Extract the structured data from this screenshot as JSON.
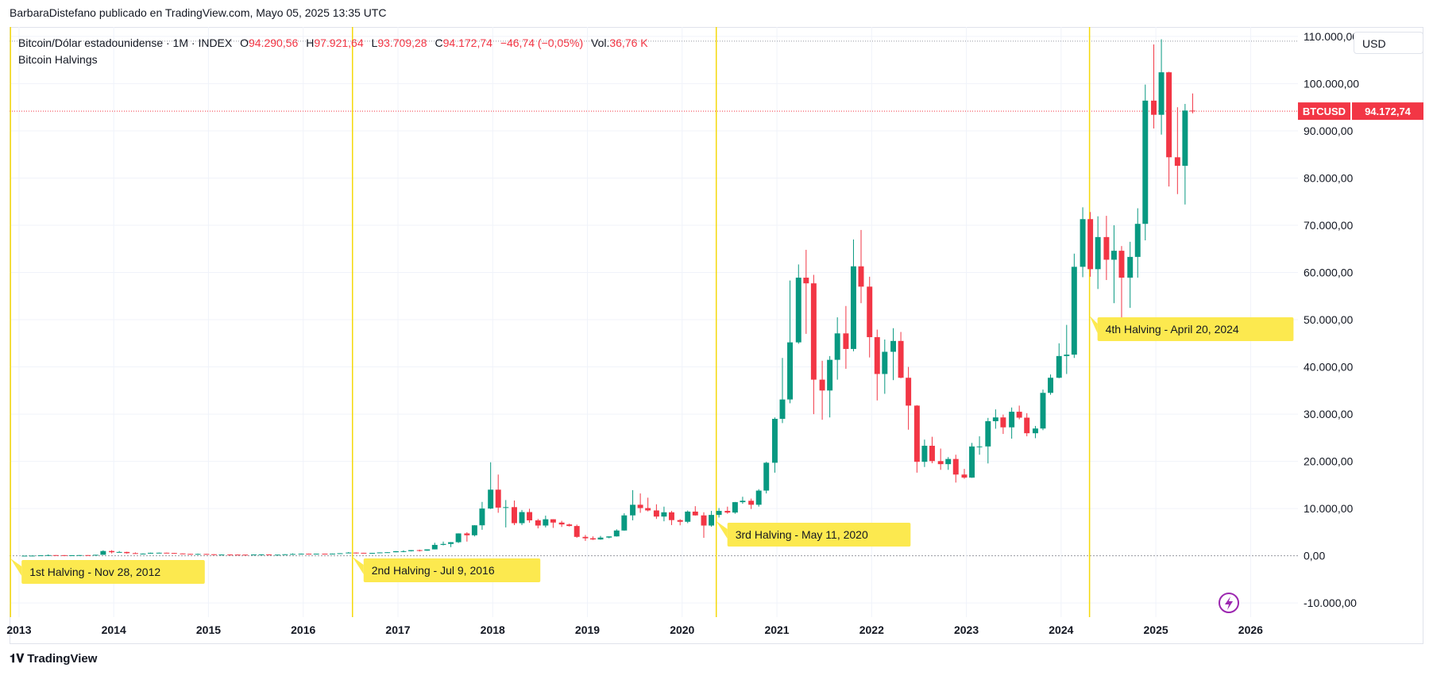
{
  "attribution": "BarbaraDistefano publicado en TradingView.com, Mayo 05, 2025 13:35 UTC",
  "legend": {
    "symbol": "Bitcoin/Dólar estadounidense · 1M · INDEX",
    "o_label": "O",
    "o": "94.290,56",
    "h_label": "H",
    "h": "97.921,64",
    "l_label": "L",
    "l": "93.709,28",
    "c_label": "C",
    "c": "94.172,74",
    "change": "−46,74 (−0,05%)",
    "vol_label": "Vol.",
    "vol": "36,76 K",
    "indicator": "Bitcoin Halvings"
  },
  "currency": "USD",
  "price_tag": {
    "ticker": "BTCUSD",
    "price": "94.172,74"
  },
  "footer": "TradingView",
  "colors": {
    "up": "#089981",
    "down": "#f23645",
    "halving_line": "#f5d90a",
    "label_bg": "#fce94f",
    "grid": "#f0f3fa"
  },
  "chart_data": {
    "type": "candlestick",
    "ylim": [
      -13000,
      112000
    ],
    "xlim": [
      2012.9,
      2026.5
    ],
    "y_ticks": [
      -10000,
      0,
      10000,
      20000,
      30000,
      40000,
      50000,
      60000,
      70000,
      80000,
      90000,
      100000,
      110000
    ],
    "y_tick_labels": [
      "-10.000,00",
      "0,00",
      "10.000,00",
      "20.000,00",
      "30.000,00",
      "40.000,00",
      "50.000,00",
      "60.000,00",
      "70.000,00",
      "80.000,00",
      "90.000,00",
      "100.000,00",
      "110.000,00"
    ],
    "x_ticks": [
      2013,
      2014,
      2015,
      2016,
      2017,
      2018,
      2019,
      2020,
      2021,
      2022,
      2023,
      2024,
      2025,
      2026
    ],
    "x_tick_labels": [
      "2013",
      "2014",
      "2015",
      "2016",
      "2017",
      "2018",
      "2019",
      "2020",
      "2021",
      "2022",
      "2023",
      "2024",
      "2025",
      "2026"
    ],
    "last_price": 94172.74,
    "ath_line": 109000,
    "halvings": [
      {
        "date": 2012.91,
        "label": "1st Halving - Nov 28, 2012"
      },
      {
        "date": 2016.52,
        "label": "2nd Halving - Jul 9, 2016"
      },
      {
        "date": 2020.36,
        "label": "3rd Halving - May 11, 2020"
      },
      {
        "date": 2024.3,
        "label": "4th Halving - April 20, 2024"
      }
    ],
    "candles": [
      [
        2013.0,
        13,
        20,
        12,
        20
      ],
      [
        2013.08,
        20,
        34,
        19,
        33
      ],
      [
        2013.17,
        33,
        94,
        32,
        93
      ],
      [
        2013.25,
        93,
        266,
        50,
        139
      ],
      [
        2013.33,
        139,
        140,
        80,
        129
      ],
      [
        2013.42,
        129,
        130,
        90,
        97
      ],
      [
        2013.5,
        97,
        110,
        65,
        106
      ],
      [
        2013.58,
        106,
        140,
        100,
        141
      ],
      [
        2013.67,
        141,
        150,
        120,
        133
      ],
      [
        2013.75,
        133,
        210,
        110,
        203
      ],
      [
        2013.83,
        203,
        1160,
        200,
        1000
      ],
      [
        2013.92,
        1000,
        1180,
        500,
        750
      ],
      [
        2014.0,
        750,
        1000,
        750,
        800
      ],
      [
        2014.08,
        800,
        850,
        450,
        550
      ],
      [
        2014.17,
        550,
        700,
        450,
        450
      ],
      [
        2014.25,
        450,
        500,
        350,
        450
      ],
      [
        2014.33,
        450,
        650,
        430,
        625
      ],
      [
        2014.42,
        625,
        680,
        550,
        640
      ],
      [
        2014.5,
        640,
        660,
        560,
        585
      ],
      [
        2014.58,
        585,
        600,
        450,
        480
      ],
      [
        2014.67,
        480,
        500,
        380,
        390
      ],
      [
        2014.75,
        390,
        410,
        280,
        340
      ],
      [
        2014.83,
        340,
        455,
        330,
        380
      ],
      [
        2014.92,
        380,
        400,
        300,
        320
      ],
      [
        2015.0,
        320,
        320,
        170,
        220
      ],
      [
        2015.08,
        220,
        270,
        220,
        255
      ],
      [
        2015.17,
        255,
        300,
        240,
        245
      ],
      [
        2015.25,
        245,
        260,
        215,
        235
      ],
      [
        2015.33,
        235,
        245,
        225,
        230
      ],
      [
        2015.42,
        230,
        265,
        220,
        263
      ],
      [
        2015.5,
        263,
        320,
        250,
        285
      ],
      [
        2015.58,
        285,
        285,
        200,
        230
      ],
      [
        2015.67,
        230,
        245,
        225,
        236
      ],
      [
        2015.75,
        236,
        330,
        235,
        315
      ],
      [
        2015.83,
        315,
        500,
        300,
        377
      ],
      [
        2015.92,
        377,
        470,
        350,
        430
      ],
      [
        2016.0,
        430,
        460,
        350,
        370
      ],
      [
        2016.08,
        370,
        440,
        360,
        436
      ],
      [
        2016.17,
        436,
        440,
        400,
        416
      ],
      [
        2016.25,
        416,
        465,
        405,
        448
      ],
      [
        2016.33,
        448,
        550,
        440,
        530
      ],
      [
        2016.42,
        530,
        780,
        530,
        670
      ],
      [
        2016.5,
        670,
        700,
        470,
        624
      ],
      [
        2016.58,
        624,
        625,
        540,
        575
      ],
      [
        2016.67,
        575,
        615,
        590,
        609
      ],
      [
        2016.75,
        609,
        715,
        600,
        700
      ],
      [
        2016.83,
        700,
        750,
        680,
        745
      ],
      [
        2016.92,
        745,
        975,
        740,
        965
      ],
      [
        2017.0,
        965,
        1150,
        750,
        970
      ],
      [
        2017.08,
        970,
        1200,
        920,
        1190
      ],
      [
        2017.17,
        1190,
        1290,
        900,
        1080
      ],
      [
        2017.25,
        1080,
        1350,
        1050,
        1350
      ],
      [
        2017.33,
        1350,
        2750,
        1350,
        2300
      ],
      [
        2017.42,
        2300,
        3000,
        2200,
        2500
      ],
      [
        2017.5,
        2500,
        2900,
        1830,
        2870
      ],
      [
        2017.58,
        2870,
        4750,
        2700,
        4730
      ],
      [
        2017.67,
        4730,
        4980,
        3000,
        4340
      ],
      [
        2017.75,
        4340,
        6470,
        4100,
        6450
      ],
      [
        2017.83,
        6450,
        11400,
        5500,
        10000
      ],
      [
        2017.92,
        10000,
        19800,
        9900,
        14000
      ],
      [
        2018.0,
        14000,
        17200,
        9100,
        10200
      ],
      [
        2018.08,
        10200,
        11800,
        6000,
        10300
      ],
      [
        2018.17,
        10300,
        11700,
        6500,
        6900
      ],
      [
        2018.25,
        6900,
        9700,
        6500,
        9250
      ],
      [
        2018.33,
        9250,
        9950,
        7000,
        7500
      ],
      [
        2018.42,
        7500,
        7800,
        5800,
        6400
      ],
      [
        2018.5,
        6400,
        8500,
        6000,
        7730
      ],
      [
        2018.58,
        7730,
        7750,
        5900,
        7030
      ],
      [
        2018.67,
        7030,
        7400,
        6100,
        6630
      ],
      [
        2018.75,
        6630,
        6800,
        6200,
        6300
      ],
      [
        2018.83,
        6300,
        6600,
        3800,
        4000
      ],
      [
        2018.92,
        4000,
        4400,
        3150,
        3700
      ],
      [
        2019.0,
        3700,
        4100,
        3350,
        3450
      ],
      [
        2019.08,
        3450,
        4200,
        3400,
        3850
      ],
      [
        2019.17,
        3850,
        4100,
        3700,
        4100
      ],
      [
        2019.25,
        4100,
        5600,
        4050,
        5350
      ],
      [
        2019.33,
        5350,
        9000,
        5300,
        8550
      ],
      [
        2019.42,
        8550,
        13900,
        7500,
        10800
      ],
      [
        2019.5,
        10800,
        13200,
        9100,
        10100
      ],
      [
        2019.58,
        10100,
        12300,
        9400,
        9600
      ],
      [
        2019.67,
        9600,
        10900,
        7800,
        8300
      ],
      [
        2019.75,
        8300,
        10400,
        7300,
        9200
      ],
      [
        2019.83,
        9200,
        9500,
        6500,
        7550
      ],
      [
        2019.92,
        7550,
        7750,
        6450,
        7200
      ],
      [
        2020.0,
        7200,
        9600,
        6900,
        9350
      ],
      [
        2020.08,
        9350,
        10500,
        8500,
        8550
      ],
      [
        2020.17,
        8550,
        9200,
        3800,
        6400
      ],
      [
        2020.25,
        6400,
        9500,
        6150,
        8650
      ],
      [
        2020.33,
        8650,
        10100,
        8100,
        9500
      ],
      [
        2020.42,
        9500,
        10400,
        8900,
        9150
      ],
      [
        2020.5,
        9150,
        11400,
        8900,
        11350
      ],
      [
        2020.58,
        11350,
        12500,
        11000,
        11650
      ],
      [
        2020.67,
        11650,
        12100,
        9900,
        10800
      ],
      [
        2020.75,
        10800,
        14100,
        10400,
        13800
      ],
      [
        2020.83,
        13800,
        19900,
        13200,
        19700
      ],
      [
        2020.92,
        19700,
        29300,
        17600,
        29000
      ],
      [
        2021.0,
        29000,
        41900,
        28100,
        33100
      ],
      [
        2021.08,
        33100,
        58300,
        32300,
        45200
      ],
      [
        2021.17,
        45200,
        61700,
        44900,
        58900
      ],
      [
        2021.25,
        58900,
        64800,
        47000,
        57700
      ],
      [
        2021.33,
        57700,
        59500,
        30000,
        37300
      ],
      [
        2021.42,
        37300,
        41300,
        28800,
        35000
      ],
      [
        2021.5,
        35000,
        42300,
        29300,
        41500
      ],
      [
        2021.58,
        41500,
        50500,
        37300,
        47100
      ],
      [
        2021.67,
        47100,
        52900,
        39600,
        43800
      ],
      [
        2021.75,
        43800,
        67000,
        43300,
        61300
      ],
      [
        2021.83,
        61300,
        69000,
        53500,
        57000
      ],
      [
        2021.92,
        57000,
        59100,
        42000,
        46300
      ],
      [
        2022.0,
        46300,
        47900,
        32900,
        38500
      ],
      [
        2022.08,
        38500,
        45800,
        34300,
        43200
      ],
      [
        2022.17,
        43200,
        48200,
        37200,
        45500
      ],
      [
        2022.25,
        45500,
        47400,
        37600,
        37700
      ],
      [
        2022.33,
        37700,
        40000,
        26700,
        31800
      ],
      [
        2022.42,
        31800,
        31900,
        17600,
        19900
      ],
      [
        2022.5,
        19900,
        24600,
        18800,
        23300
      ],
      [
        2022.58,
        23300,
        25200,
        19600,
        20050
      ],
      [
        2022.67,
        20050,
        22700,
        18200,
        19400
      ],
      [
        2022.75,
        19400,
        20900,
        18200,
        20500
      ],
      [
        2022.83,
        20500,
        21400,
        15500,
        17200
      ],
      [
        2022.92,
        17200,
        18400,
        16300,
        16550
      ],
      [
        2023.0,
        16550,
        23900,
        16500,
        23150
      ],
      [
        2023.08,
        23150,
        25300,
        21400,
        23150
      ],
      [
        2023.17,
        23150,
        29200,
        19550,
        28500
      ],
      [
        2023.25,
        28500,
        31000,
        26900,
        29300
      ],
      [
        2023.33,
        29300,
        29900,
        25800,
        27200
      ],
      [
        2023.42,
        27200,
        31400,
        24800,
        30500
      ],
      [
        2023.5,
        30500,
        31800,
        28900,
        29250
      ],
      [
        2023.58,
        29250,
        30200,
        25300,
        25950
      ],
      [
        2023.67,
        25950,
        27500,
        24900,
        26950
      ],
      [
        2023.75,
        26950,
        35200,
        26600,
        34500
      ],
      [
        2023.83,
        34500,
        38400,
        34100,
        37700
      ],
      [
        2023.92,
        37700,
        45000,
        37600,
        42300
      ],
      [
        2024.0,
        42300,
        48900,
        38500,
        42600
      ],
      [
        2024.08,
        42600,
        64000,
        41900,
        61200
      ],
      [
        2024.17,
        61200,
        73800,
        59000,
        71300
      ],
      [
        2024.25,
        71300,
        72800,
        59100,
        60700
      ],
      [
        2024.33,
        60700,
        71900,
        56500,
        67500
      ],
      [
        2024.42,
        67500,
        72000,
        58400,
        62700
      ],
      [
        2024.5,
        62700,
        70000,
        53500,
        64600
      ],
      [
        2024.58,
        64600,
        65600,
        49000,
        58900
      ],
      [
        2024.67,
        58900,
        66500,
        52500,
        63300
      ],
      [
        2024.75,
        63300,
        73600,
        58900,
        70300
      ],
      [
        2024.83,
        70300,
        99800,
        66800,
        96400
      ],
      [
        2024.92,
        96400,
        108300,
        90500,
        93400
      ],
      [
        2025.0,
        93400,
        109400,
        89200,
        102400
      ],
      [
        2025.08,
        102400,
        102500,
        78200,
        84400
      ],
      [
        2025.17,
        84400,
        95000,
        76600,
        82600
      ],
      [
        2025.25,
        82600,
        95700,
        74400,
        94300
      ],
      [
        2025.33,
        94290.56,
        97921.64,
        93709.28,
        94172.74
      ]
    ]
  }
}
